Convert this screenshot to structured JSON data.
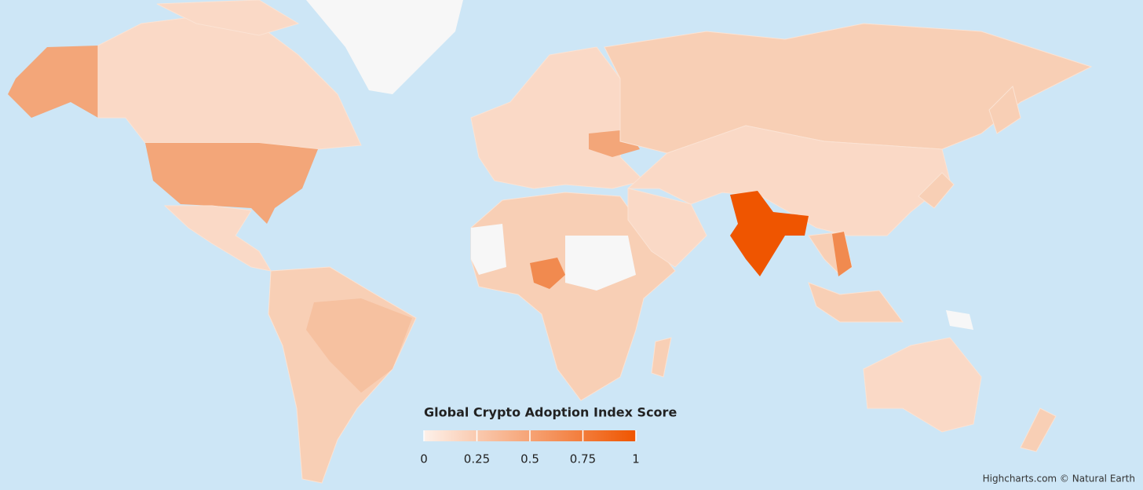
{
  "legend": {
    "title": "Global Crypto Adoption Index Score",
    "range": [
      0,
      1
    ],
    "ticks": [
      0,
      0.25,
      0.5,
      0.75,
      1
    ],
    "min_color": "#fdf1ea",
    "max_color": "#ef5500"
  },
  "credits": "Highcharts.com © Natural Earth"
}
